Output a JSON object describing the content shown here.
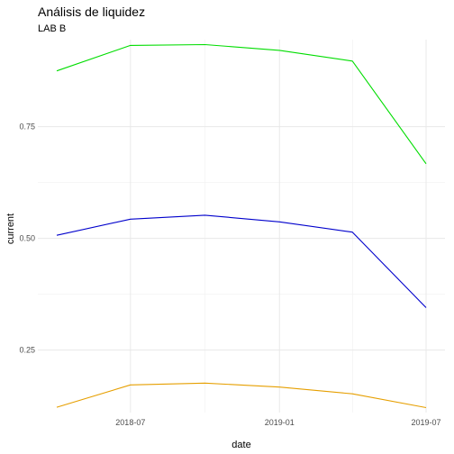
{
  "chart_data": {
    "type": "line",
    "title": "Análisis de liquidez",
    "subtitle": "LAB B",
    "xlabel": "date",
    "ylabel": "current",
    "x": [
      "2018-04-01",
      "2018-07-01",
      "2018-10-01",
      "2019-01-01",
      "2019-04-01",
      "2019-07-01"
    ],
    "xlim": [
      "2018-04-01",
      "2019-07-01"
    ],
    "x_ticks": [
      {
        "date": "2018-07-01",
        "label": "2018-07"
      },
      {
        "date": "2019-01-01",
        "label": "2019-01"
      },
      {
        "date": "2019-07-01",
        "label": "2019-07"
      }
    ],
    "ylim": [
      0.11,
      0.945
    ],
    "y_ticks": [
      {
        "value": 0.25,
        "label": "0.25"
      },
      {
        "value": 0.5,
        "label": "0.50"
      },
      {
        "value": 0.75,
        "label": "0.75"
      }
    ],
    "grid": true,
    "series": [
      {
        "color": "#00dd00",
        "values": [
          0.875,
          0.932,
          0.934,
          0.921,
          0.897,
          0.667
        ]
      },
      {
        "color": "#0000cc",
        "values": [
          0.507,
          0.543,
          0.552,
          0.537,
          0.514,
          0.345
        ]
      },
      {
        "color": "#e69f00",
        "values": [
          0.122,
          0.172,
          0.176,
          0.167,
          0.152,
          0.121
        ]
      }
    ]
  }
}
